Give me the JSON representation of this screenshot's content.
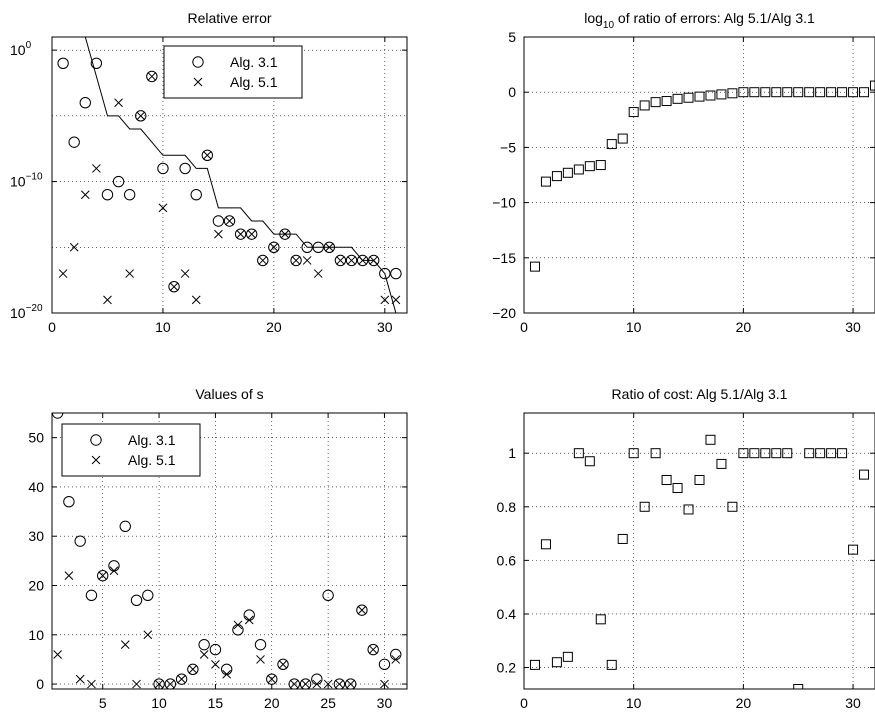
{
  "chart_data": [
    {
      "type": "scatter",
      "title": "Relative error",
      "xlim": [
        0,
        32
      ],
      "yscale": "log",
      "ylim": [
        1e-20,
        10
      ],
      "xticks": [
        "0",
        "10",
        "20",
        "30"
      ],
      "yticks": [
        {
          "base": "10",
          "exp": "0",
          "value": 1
        },
        {
          "base": "10",
          "exp": "−10",
          "value": 1e-10
        },
        {
          "base": "10",
          "exp": "−20",
          "value": 1e-20
        }
      ],
      "grid": true,
      "legend": {
        "location": "top-center",
        "entries": [
          {
            "label": "Alg. 3.1",
            "marker": "circle"
          },
          {
            "label": "Alg. 5.1",
            "marker": "x"
          }
        ]
      },
      "series": [
        {
          "name": "Alg. 3.1",
          "marker": "circle",
          "x": [
            1,
            2,
            3,
            4,
            5,
            6,
            7,
            8,
            9,
            10,
            11,
            12,
            13,
            14,
            15,
            16,
            17,
            18,
            19,
            20,
            21,
            22,
            23,
            24,
            25,
            26,
            27,
            28,
            29,
            30,
            31
          ],
          "y": [
            0.1,
            1e-07,
            0.0001,
            0.1,
            1e-11,
            1e-10,
            1e-11,
            1e-05,
            0.01,
            1e-09,
            1e-18,
            1e-09,
            1e-11,
            1e-08,
            1e-13,
            1e-13,
            1e-14,
            1e-14,
            1e-16,
            1e-15,
            1e-14,
            1e-16,
            1e-15,
            1e-15,
            1e-15,
            1e-16,
            1e-16,
            1e-16,
            1e-16,
            1e-17,
            1e-17
          ]
        },
        {
          "name": "Alg. 5.1",
          "marker": "x",
          "x": [
            1,
            2,
            3,
            4,
            5,
            6,
            7,
            8,
            9,
            10,
            11,
            12,
            13,
            14,
            15,
            16,
            17,
            18,
            19,
            20,
            21,
            22,
            23,
            24,
            25,
            26,
            27,
            28,
            29,
            30,
            31
          ],
          "y": [
            1e-17,
            1e-15,
            1e-11,
            1e-09,
            1e-19,
            0.0001,
            1e-17,
            1e-05,
            0.01,
            1e-12,
            1e-18,
            1e-17,
            1e-19,
            1e-08,
            1e-14,
            1e-13,
            1e-14,
            1e-14,
            1e-16,
            1e-15,
            1e-14,
            1e-16,
            1e-16,
            1e-17,
            1e-15,
            1e-16,
            1e-16,
            1e-16,
            1e-16,
            1e-19,
            1e-19
          ]
        },
        {
          "name": "",
          "marker": "line",
          "x": [
            3,
            4,
            5,
            6,
            7,
            8,
            9,
            10,
            11,
            12,
            13,
            14,
            15,
            16,
            17,
            18,
            19,
            20,
            21,
            22,
            23,
            24,
            25,
            26,
            27,
            28,
            29,
            30,
            31
          ],
          "y": [
            10.0,
            0.01,
            1e-05,
            1e-05,
            1e-06,
            1e-06,
            1e-07,
            1e-08,
            1e-08,
            1e-08,
            1e-09,
            1e-09,
            1e-12,
            1e-12,
            1e-12,
            1e-13,
            1e-13,
            1e-14,
            1e-14,
            1e-14,
            1e-15,
            1e-15,
            1e-15,
            1e-15,
            1e-15,
            1e-16,
            1e-16,
            1e-17,
            1e-20
          ]
        }
      ]
    },
    {
      "type": "scatter",
      "title": "log10 of ratio of errors: Alg 5.1/Alg 3.1",
      "title_parts": {
        "prefix": "log",
        "sub": "10",
        "suffix": " of ratio of errors: Alg 5.1/Alg 3.1"
      },
      "xlim": [
        0,
        32
      ],
      "ylim": [
        -20,
        5
      ],
      "xticks": [
        "0",
        "10",
        "20",
        "30"
      ],
      "yticks": [
        "5",
        "0",
        "−5",
        "−10",
        "−15",
        "−20"
      ],
      "grid": true,
      "series": [
        {
          "name": "",
          "marker": "square",
          "x": [
            1,
            2,
            3,
            4,
            5,
            6,
            7,
            8,
            9,
            10,
            11,
            12,
            13,
            14,
            15,
            16,
            17,
            18,
            19,
            20,
            21,
            22,
            23,
            24,
            25,
            26,
            27,
            28,
            29,
            30,
            31,
            32
          ],
          "y": [
            -15.8,
            -8.1,
            -7.6,
            -7.3,
            -7.0,
            -6.7,
            -6.6,
            -4.7,
            -4.2,
            -1.8,
            -1.2,
            -0.9,
            -0.8,
            -0.6,
            -0.5,
            -0.4,
            -0.3,
            -0.2,
            -0.1,
            0,
            0,
            0,
            0,
            0,
            0,
            0,
            0,
            0,
            0,
            0,
            0,
            0.6
          ]
        }
      ]
    },
    {
      "type": "scatter",
      "title": "Values of s",
      "xlim": [
        0.5,
        32
      ],
      "ylim": [
        -1,
        55
      ],
      "xticks": [
        "5",
        "10",
        "15",
        "20",
        "25",
        "30"
      ],
      "yticks": [
        "50",
        "40",
        "30",
        "20",
        "10",
        "0"
      ],
      "grid": true,
      "legend": {
        "location": "top-left",
        "entries": [
          {
            "label": "Alg. 3.1",
            "marker": "circle"
          },
          {
            "label": "Alg. 5.1",
            "marker": "x"
          }
        ]
      },
      "series": [
        {
          "name": "Alg. 3.1",
          "marker": "circle",
          "x": [
            1,
            2,
            3,
            4,
            5,
            6,
            7,
            8,
            9,
            10,
            11,
            12,
            13,
            14,
            15,
            16,
            17,
            18,
            19,
            20,
            21,
            22,
            23,
            24,
            25,
            26,
            27,
            28,
            29,
            30,
            31
          ],
          "y": [
            55,
            37,
            29,
            18,
            22,
            24,
            32,
            17,
            18,
            0,
            0,
            1,
            3,
            8,
            7,
            3,
            11,
            14,
            8,
            1,
            4,
            0,
            0,
            1,
            18,
            0,
            0,
            15,
            7,
            4,
            6
          ]
        },
        {
          "name": "Alg. 5.1",
          "marker": "x",
          "x": [
            1,
            2,
            3,
            4,
            5,
            6,
            7,
            8,
            9,
            10,
            11,
            12,
            13,
            14,
            15,
            16,
            17,
            18,
            19,
            20,
            21,
            22,
            23,
            24,
            25,
            26,
            27,
            28,
            29,
            30,
            31
          ],
          "y": [
            6,
            22,
            1,
            0,
            22,
            23,
            8,
            0,
            10,
            0,
            0,
            1,
            3,
            6,
            4,
            2,
            12,
            13,
            5,
            1,
            4,
            0,
            0,
            0,
            0,
            0,
            0,
            15,
            7,
            0,
            5
          ]
        }
      ]
    },
    {
      "type": "scatter",
      "title": "Ratio of cost: Alg 5.1/Alg 3.1",
      "xlim": [
        0,
        32
      ],
      "ylim": [
        0.12,
        1.15
      ],
      "xticks": [
        "0",
        "10",
        "20",
        "30"
      ],
      "yticks": [
        "1",
        "0.8",
        "0.6",
        "0.4",
        "0.2"
      ],
      "grid": true,
      "series": [
        {
          "name": "",
          "marker": "square",
          "x": [
            1,
            2,
            3,
            4,
            5,
            6,
            7,
            8,
            9,
            10,
            11,
            12,
            13,
            14,
            15,
            16,
            17,
            18,
            19,
            20,
            21,
            22,
            23,
            24,
            25,
            26,
            27,
            28,
            29,
            30,
            31
          ],
          "y": [
            0.21,
            0.66,
            0.22,
            0.24,
            1.0,
            0.97,
            0.38,
            0.21,
            0.68,
            1.0,
            0.8,
            1.0,
            0.9,
            0.87,
            0.79,
            0.9,
            1.05,
            0.96,
            0.8,
            1.0,
            1.0,
            1.0,
            1.0,
            1.0,
            0.12,
            1.0,
            1.0,
            1.0,
            1.0,
            0.64,
            0.92
          ]
        }
      ]
    }
  ]
}
